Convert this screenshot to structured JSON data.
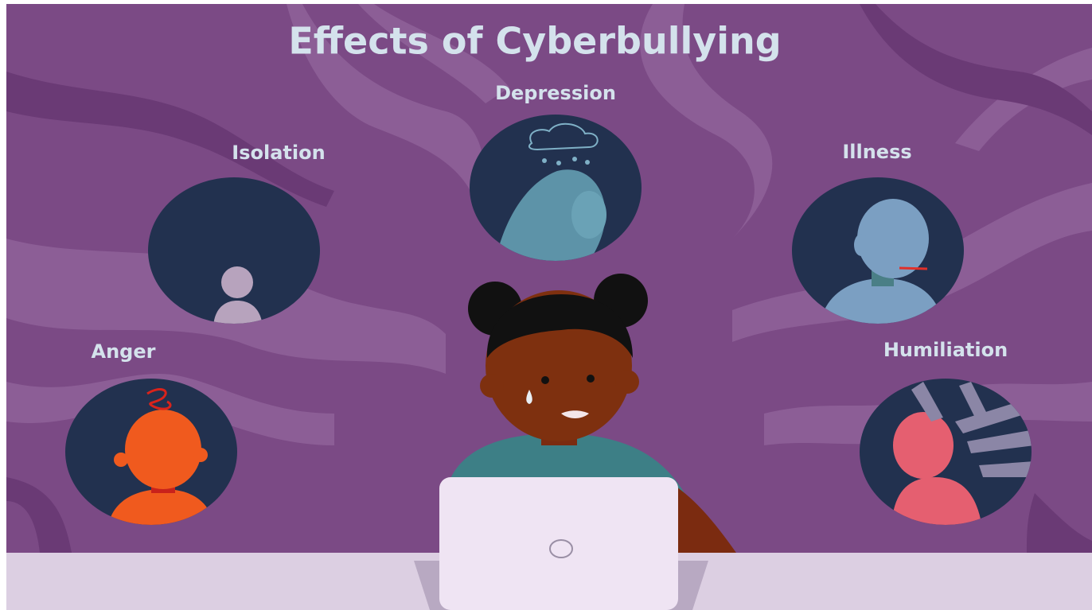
{
  "title": "Effects of Cyberbullying",
  "effects": [
    {
      "label": "Depression"
    },
    {
      "label": "Isolation"
    },
    {
      "label": "Illness"
    },
    {
      "label": "Anger"
    },
    {
      "label": "Humiliation"
    }
  ]
}
